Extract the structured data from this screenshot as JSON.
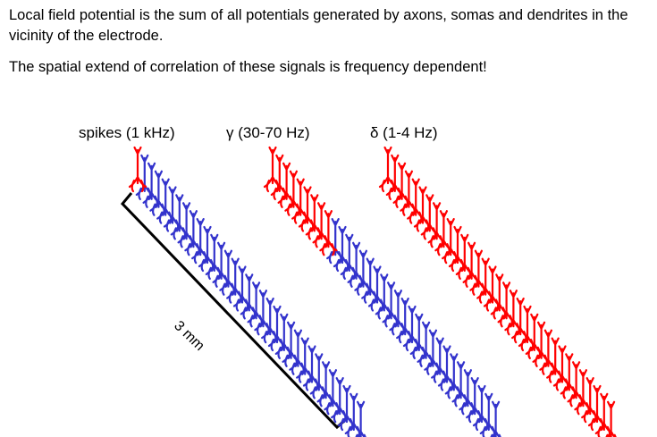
{
  "text": {
    "line1": "Local field potential is the sum of all potentials generated by axons, somas and dendrites in the vicinity of the electrode.",
    "line2": "The spatial extend of correlation of these signals is frequency dependent!"
  },
  "columns": [
    {
      "label": "spikes (1 kHz)",
      "red_count": 1
    },
    {
      "label": "γ (30-70 Hz)",
      "red_count": 9
    },
    {
      "label": "δ (1-4 Hz)",
      "red_count": 33
    }
  ],
  "scale_bar": {
    "label": "3 mm"
  },
  "colors": {
    "active": "#ff0000",
    "inactive": "#3333cc",
    "scale": "#000000"
  },
  "neurons_per_column": 33
}
